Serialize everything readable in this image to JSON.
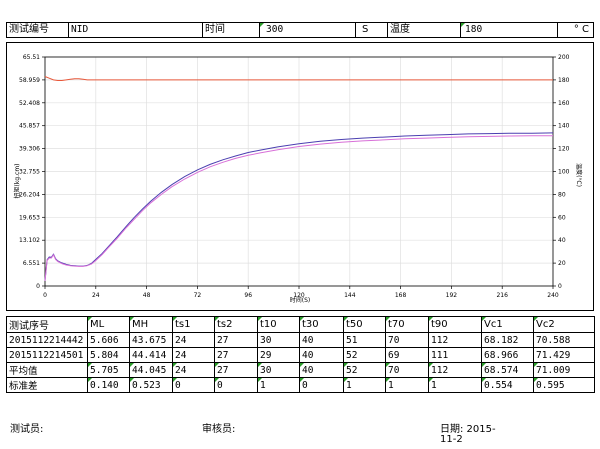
{
  "header": {
    "test_no_label": "测试编号",
    "test_no_value": "NID",
    "time_label": "时间",
    "time_value": "300",
    "time_unit": "S",
    "temp_label": "温度",
    "temp_value": "180",
    "temp_unit": "° C"
  },
  "chart_data": {
    "type": "line",
    "xlabel": "时间(S)",
    "ylabel_left": "扭矩(kg.cm)",
    "ylabel_right": "温度(°C)",
    "xlim": [
      0,
      240
    ],
    "ylim_left": [
      0,
      65.51
    ],
    "ylim_right": [
      0,
      200
    ],
    "x_ticks": [
      0,
      24,
      48,
      72,
      96,
      120,
      144,
      168,
      192,
      216,
      240
    ],
    "y_left_ticks": [
      "0",
      "6.551",
      "13.102",
      "19.653",
      "26.204",
      "32.755",
      "39.306",
      "45.857",
      "52.408",
      "58.959",
      "65.51"
    ],
    "y_right_ticks": [
      "0",
      "20",
      "40",
      "60",
      "80",
      "100",
      "120",
      "140",
      "160",
      "180",
      "200"
    ],
    "grid": true,
    "series": [
      {
        "axis": "left",
        "color": "#4b3fb0",
        "x": [
          0,
          1,
          2,
          3,
          4,
          5,
          6,
          7,
          8,
          10,
          12,
          14,
          16,
          18,
          20,
          22,
          24,
          27,
          30,
          34,
          38,
          42,
          46,
          50,
          55,
          60,
          66,
          72,
          78,
          84,
          90,
          96,
          102,
          110,
          120,
          130,
          140,
          150,
          160,
          170,
          180,
          190,
          200,
          210,
          220,
          230,
          240
        ],
        "y": [
          1.5,
          7.5,
          8.3,
          8.2,
          9.1,
          7.8,
          7.2,
          6.9,
          6.6,
          6.2,
          5.9,
          5.8,
          5.7,
          5.7,
          5.9,
          6.5,
          7.6,
          9.3,
          11.3,
          14.0,
          16.8,
          19.5,
          22.0,
          24.3,
          26.8,
          29.0,
          31.3,
          33.2,
          34.8,
          36.1,
          37.2,
          38.2,
          38.9,
          39.8,
          40.7,
          41.4,
          41.9,
          42.3,
          42.6,
          42.9,
          43.1,
          43.3,
          43.5,
          43.6,
          43.7,
          43.7,
          43.8
        ]
      },
      {
        "axis": "left",
        "color": "#d870d8",
        "x": [
          0,
          1,
          2,
          3,
          4,
          5,
          6,
          7,
          8,
          10,
          12,
          14,
          16,
          18,
          20,
          22,
          24,
          27,
          30,
          34,
          38,
          42,
          46,
          50,
          55,
          60,
          66,
          72,
          78,
          84,
          90,
          96,
          102,
          110,
          120,
          130,
          140,
          150,
          160,
          170,
          180,
          190,
          200,
          210,
          220,
          230,
          240
        ],
        "y": [
          1.5,
          7.3,
          8.0,
          8.0,
          8.9,
          7.6,
          7.0,
          6.7,
          6.4,
          6.0,
          5.8,
          5.7,
          5.6,
          5.6,
          5.8,
          6.3,
          7.3,
          9.0,
          11.0,
          13.6,
          16.4,
          19.0,
          21.5,
          23.8,
          26.2,
          28.4,
          30.6,
          32.5,
          34.1,
          35.4,
          36.5,
          37.4,
          38.1,
          39.0,
          39.9,
          40.6,
          41.1,
          41.5,
          41.8,
          42.1,
          42.3,
          42.5,
          42.7,
          42.8,
          42.9,
          43.0,
          43.0
        ]
      },
      {
        "axis": "right",
        "color": "#e8583a",
        "x": [
          0,
          2,
          4,
          6,
          8,
          10,
          12,
          14,
          16,
          18,
          20,
          24,
          48,
          96,
          144,
          192,
          240
        ],
        "y": [
          183.0,
          181.5,
          180.0,
          179.5,
          179.5,
          180.0,
          180.5,
          181.0,
          181.0,
          180.5,
          180.0,
          180.0,
          180.0,
          180.0,
          180.0,
          180.0,
          180.0
        ]
      }
    ]
  },
  "table": {
    "headers": [
      "测试序号",
      "ML",
      "MH",
      "ts1",
      "ts2",
      "t10",
      "t30",
      "t50",
      "t70",
      "t90",
      "Vc1",
      "Vc2"
    ],
    "rows": [
      [
        "2015112214442",
        "5.606",
        "43.675",
        "24",
        "27",
        "30",
        "40",
        "51",
        "70",
        "112",
        "68.182",
        "70.588"
      ],
      [
        "2015112214501",
        "5.804",
        "44.414",
        "24",
        "27",
        "29",
        "40",
        "52",
        "69",
        "111",
        "68.966",
        "71.429"
      ],
      [
        "平均值",
        "5.705",
        "44.045",
        "24",
        "27",
        "30",
        "40",
        "52",
        "70",
        "112",
        "68.574",
        "71.009"
      ],
      [
        "标准差",
        "0.140",
        "0.523",
        "0",
        "0",
        "1",
        "0",
        "1",
        "1",
        "1",
        "0.554",
        "0.595"
      ]
    ]
  },
  "footer": {
    "tester_label": "测试员:",
    "reviewer_label": "审核员:",
    "date_label": "日期: 2015-",
    "date_line2": "11-2"
  },
  "colors": {
    "grid": "#e0e0e0",
    "marker": "#2a9d2a"
  }
}
